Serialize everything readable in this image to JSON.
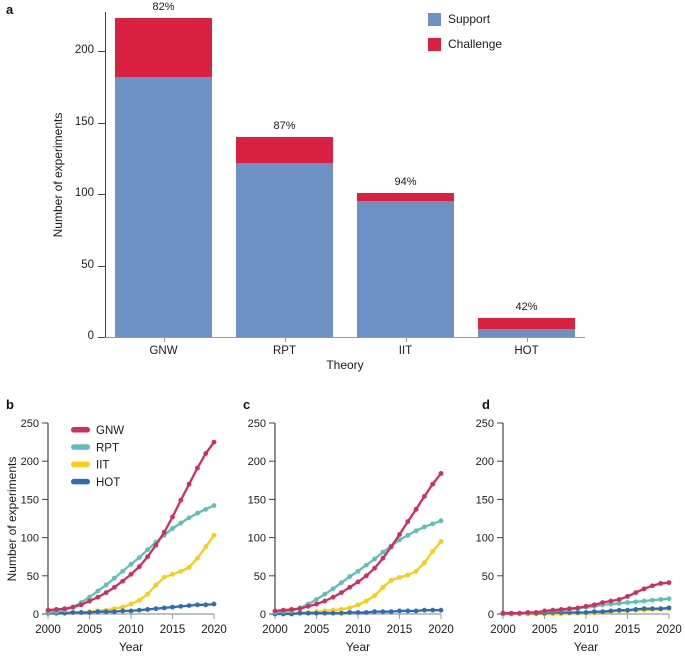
{
  "panel_labels": {
    "a": "a",
    "b": "b",
    "c": "c",
    "d": "d"
  },
  "colors": {
    "support_blue": "#6d90c5",
    "challenge_red": "#da2142",
    "gnw": "#d12d61",
    "rpt": "#5cc0b4",
    "iit": "#f8cd12",
    "hot": "#2e6cb3",
    "axis_dark": "#444444",
    "axis_light": "#9a9a9a",
    "text": "#1a1a1a"
  },
  "chart_data": [
    {
      "panel": "a",
      "type": "bar",
      "stacked": true,
      "categories": [
        "GNW",
        "RPT",
        "IIT",
        "HOT"
      ],
      "series": [
        {
          "name": "Support",
          "color": "#6d90c5",
          "values": [
            182,
            122,
            95,
            5.5
          ]
        },
        {
          "name": "Challenge",
          "color": "#da2142",
          "values": [
            41,
            18,
            6,
            7.5
          ]
        }
      ],
      "totals": [
        223,
        140,
        101,
        13
      ],
      "bar_labels": [
        "82%",
        "87%",
        "94%",
        "42%"
      ],
      "xlabel": "Theory",
      "ylabel": "Number of experiments",
      "ylim": [
        0,
        235
      ],
      "yticks": [
        0,
        50,
        100,
        150,
        200
      ],
      "legend_position": "top-right",
      "grid": false
    },
    {
      "panel": "b",
      "type": "line",
      "x": [
        2000,
        2001,
        2002,
        2003,
        2004,
        2005,
        2006,
        2007,
        2008,
        2009,
        2010,
        2011,
        2012,
        2013,
        2014,
        2015,
        2016,
        2017,
        2018,
        2019,
        2020
      ],
      "series": [
        {
          "name": "GNW",
          "color": "#d12d61",
          "values": [
            5,
            6,
            7,
            9,
            12,
            17,
            22,
            28,
            35,
            43,
            52,
            62,
            75,
            90,
            107,
            127,
            149,
            170,
            191,
            210,
            225
          ]
        },
        {
          "name": "RPT",
          "color": "#5cc0b4",
          "values": [
            2,
            3,
            5,
            9,
            15,
            22,
            30,
            38,
            47,
            56,
            65,
            74,
            84,
            94,
            103,
            112,
            119,
            126,
            132,
            137,
            142
          ]
        },
        {
          "name": "IIT",
          "color": "#f8cd12",
          "values": [
            1,
            1,
            1,
            2,
            2,
            3,
            4,
            5,
            7,
            9,
            13,
            18,
            26,
            38,
            48,
            52,
            56,
            61,
            73,
            88,
            103
          ]
        },
        {
          "name": "HOT",
          "color": "#2e6cb3",
          "values": [
            1,
            1,
            1,
            2,
            2,
            2,
            3,
            3,
            3,
            4,
            4,
            5,
            6,
            7,
            8,
            9,
            10,
            11,
            12,
            12,
            13
          ]
        }
      ],
      "xlabel": "Year",
      "ylabel": "Number of experiments",
      "ylim": [
        0,
        250
      ],
      "yticks": [
        0,
        50,
        100,
        150,
        200,
        250
      ],
      "xticks": [
        2000,
        2005,
        2010,
        2015,
        2020
      ],
      "legend": true,
      "legend_position": "top-left",
      "grid": false,
      "markers": true
    },
    {
      "panel": "c",
      "type": "line",
      "x": [
        2000,
        2001,
        2002,
        2003,
        2004,
        2005,
        2006,
        2007,
        2008,
        2009,
        2010,
        2011,
        2012,
        2013,
        2014,
        2015,
        2016,
        2017,
        2018,
        2019,
        2020
      ],
      "series": [
        {
          "name": "GNW",
          "color": "#d12d61",
          "values": [
            4,
            5,
            6,
            7,
            10,
            13,
            17,
            22,
            28,
            35,
            42,
            50,
            60,
            73,
            88,
            104,
            121,
            137,
            154,
            170,
            184
          ]
        },
        {
          "name": "RPT",
          "color": "#5cc0b4",
          "values": [
            2,
            3,
            4,
            8,
            13,
            19,
            26,
            33,
            41,
            49,
            56,
            64,
            72,
            81,
            89,
            97,
            103,
            109,
            114,
            118,
            122
          ]
        },
        {
          "name": "IIT",
          "color": "#f8cd12",
          "values": [
            1,
            1,
            1,
            2,
            2,
            3,
            4,
            5,
            6,
            8,
            12,
            17,
            24,
            35,
            44,
            48,
            51,
            56,
            67,
            82,
            95
          ]
        },
        {
          "name": "HOT",
          "color": "#2e6cb3",
          "values": [
            0,
            0,
            0,
            1,
            1,
            1,
            1,
            1,
            1,
            2,
            2,
            2,
            3,
            3,
            3,
            4,
            4,
            4,
            5,
            5,
            5
          ]
        }
      ],
      "xlabel": "Year",
      "ylabel": "",
      "ylim": [
        0,
        250
      ],
      "yticks": [
        0,
        50,
        100,
        150,
        200,
        250
      ],
      "xticks": [
        2000,
        2005,
        2010,
        2015,
        2020
      ],
      "legend": false,
      "grid": false,
      "markers": true
    },
    {
      "panel": "d",
      "type": "line",
      "x": [
        2000,
        2001,
        2002,
        2003,
        2004,
        2005,
        2006,
        2007,
        2008,
        2009,
        2010,
        2011,
        2012,
        2013,
        2014,
        2015,
        2016,
        2017,
        2018,
        2019,
        2020
      ],
      "series": [
        {
          "name": "GNW",
          "color": "#d12d61",
          "values": [
            1,
            1,
            1,
            2,
            2,
            4,
            5,
            6,
            7,
            8,
            10,
            12,
            15,
            17,
            19,
            23,
            28,
            33,
            37,
            40,
            41
          ]
        },
        {
          "name": "RPT",
          "color": "#5cc0b4",
          "values": [
            0,
            0,
            1,
            1,
            2,
            3,
            4,
            5,
            6,
            7,
            9,
            10,
            12,
            13,
            14,
            15,
            16,
            17,
            18,
            19,
            20
          ]
        },
        {
          "name": "IIT",
          "color": "#f8cd12",
          "values": [
            0,
            0,
            0,
            0,
            0,
            0,
            0,
            0,
            1,
            1,
            1,
            1,
            2,
            3,
            4,
            4,
            5,
            5,
            6,
            6,
            7
          ]
        },
        {
          "name": "HOT",
          "color": "#2e6cb3",
          "values": [
            1,
            1,
            1,
            1,
            1,
            1,
            2,
            2,
            2,
            2,
            2,
            3,
            3,
            4,
            5,
            5,
            6,
            7,
            7,
            7,
            8
          ]
        }
      ],
      "xlabel": "Year",
      "ylabel": "",
      "ylim": [
        0,
        250
      ],
      "yticks": [
        0,
        50,
        100,
        150,
        200,
        250
      ],
      "xticks": [
        2000,
        2005,
        2010,
        2015,
        2020
      ],
      "legend": false,
      "grid": false,
      "markers": true
    }
  ]
}
